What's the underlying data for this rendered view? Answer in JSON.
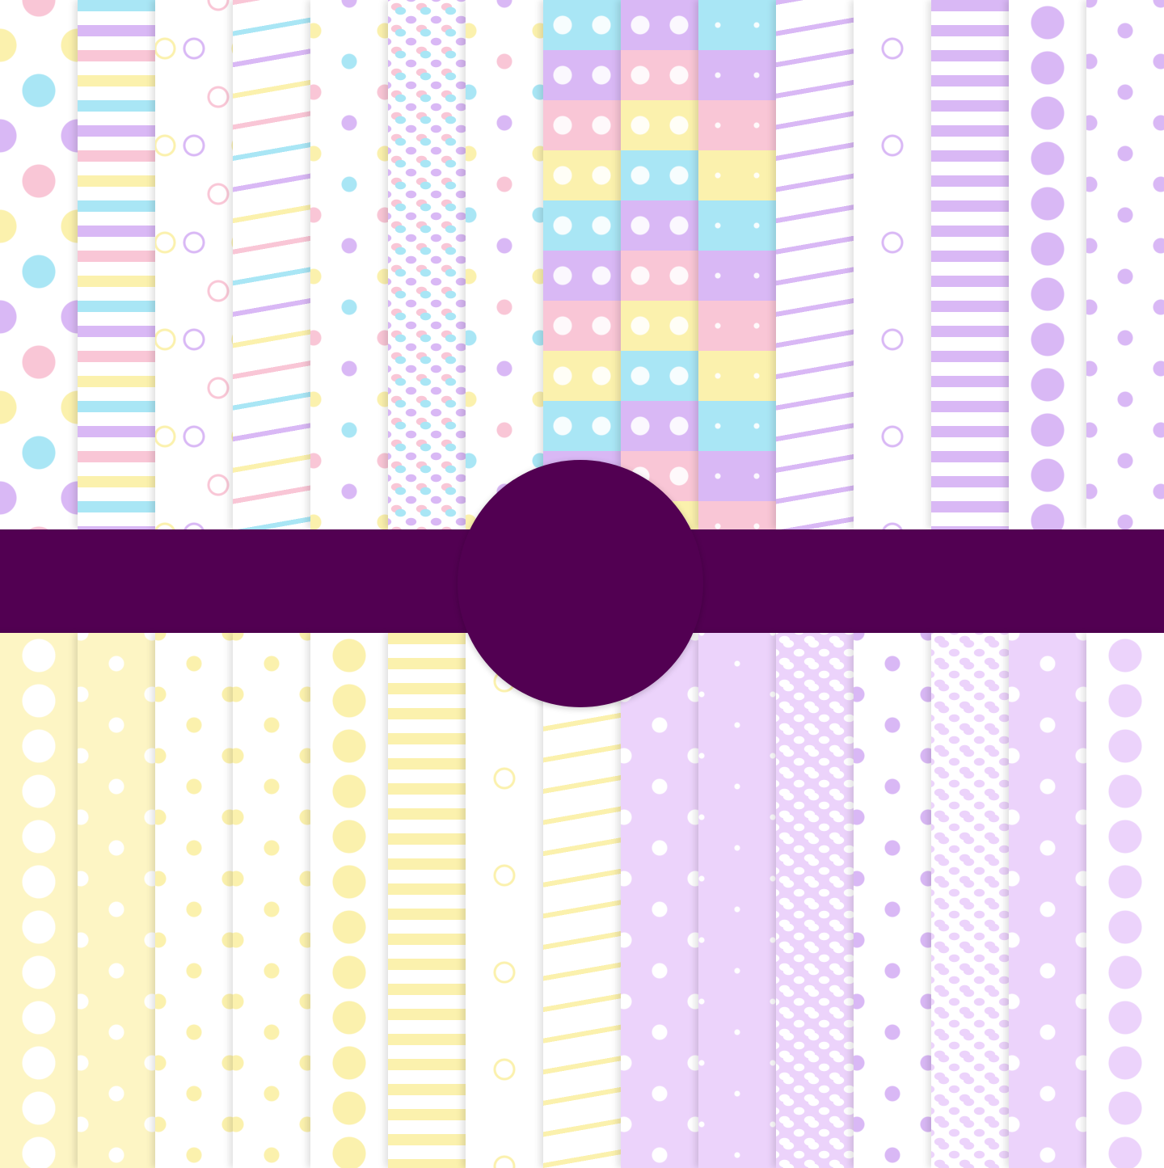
{
  "banner": {
    "color": "#520052"
  },
  "seal": {
    "color": "#520052"
  },
  "palette": {
    "blue": "#a9e6f5",
    "pink": "#f9c6d6",
    "purple": "#d9b8f5",
    "yellow": "#fbf1ad",
    "white": "#ffffff",
    "light_purple": "#ecd3fb",
    "light_yellow": "#fdf5c4"
  },
  "top_papers": [
    {
      "pattern": "dots",
      "bg": "#ffffff",
      "colors": [
        "#a9e6f5",
        "#d9b8f5",
        "#f9c6d6",
        "#fbf1ad"
      ]
    },
    {
      "pattern": "stripes",
      "bg": "#ffffff",
      "colors": [
        "#a9e6f5",
        "#d9b8f5",
        "#f9c6d6",
        "#fbf1ad"
      ]
    },
    {
      "pattern": "scribbles",
      "bg": "#ffffff",
      "colors": [
        "#d9b8f5",
        "#f9c6d6",
        "#fbf1ad"
      ]
    },
    {
      "pattern": "waves",
      "bg": "#ffffff",
      "colors": [
        "#f9c6d6",
        "#a9e6f5",
        "#d9b8f5",
        "#fbf1ad"
      ]
    },
    {
      "pattern": "hearts",
      "bg": "#ffffff",
      "colors": [
        "#a9e6f5",
        "#f9c6d6",
        "#d9b8f5",
        "#fbf1ad"
      ]
    },
    {
      "pattern": "confetti",
      "bg": "#ffffff",
      "colors": [
        "#a9e6f5",
        "#d9b8f5",
        "#f9c6d6",
        "#fbf1ad"
      ]
    },
    {
      "pattern": "hearts",
      "bg": "#ffffff",
      "colors": [
        "#f9c6d6",
        "#a9e6f5",
        "#d9b8f5",
        "#fbf1ad"
      ]
    },
    {
      "pattern": "wide-stripes-hearts",
      "bg": "#ffffff",
      "colors": [
        "#a9e6f5",
        "#d9b8f5",
        "#f9c6d6",
        "#fbf1ad"
      ]
    },
    {
      "pattern": "wide-stripes-dots",
      "bg": "#ffffff",
      "colors": [
        "#d9b8f5",
        "#f9c6d6",
        "#fbf1ad",
        "#a9e6f5"
      ]
    },
    {
      "pattern": "wide-stripes-sparkles",
      "bg": "#ffffff",
      "colors": [
        "#a9e6f5",
        "#d9b8f5",
        "#f9c6d6",
        "#fbf1ad"
      ]
    },
    {
      "pattern": "waves",
      "bg": "#ffffff",
      "colors": [
        "#d9b8f5"
      ]
    },
    {
      "pattern": "scribbles",
      "bg": "#ffffff",
      "colors": [
        "#d9b8f5"
      ]
    },
    {
      "pattern": "stripes",
      "bg": "#ffffff",
      "colors": [
        "#d9b8f5"
      ]
    },
    {
      "pattern": "dots",
      "bg": "#ffffff",
      "colors": [
        "#d9b8f5"
      ]
    },
    {
      "pattern": "hearts",
      "bg": "#ffffff",
      "colors": [
        "#d9b8f5"
      ]
    }
  ],
  "bottom_papers": [
    {
      "pattern": "dots",
      "bg": "#fdf5c4",
      "colors": [
        "#ffffff"
      ]
    },
    {
      "pattern": "hearts",
      "bg": "#fdf5c4",
      "colors": [
        "#ffffff"
      ]
    },
    {
      "pattern": "hearts",
      "bg": "#ffffff",
      "colors": [
        "#fbf1ad"
      ]
    },
    {
      "pattern": "hearts",
      "bg": "#ffffff",
      "colors": [
        "#fbf1ad"
      ]
    },
    {
      "pattern": "dots",
      "bg": "#ffffff",
      "colors": [
        "#fbf1ad"
      ]
    },
    {
      "pattern": "stripes",
      "bg": "#ffffff",
      "colors": [
        "#fbf1ad"
      ]
    },
    {
      "pattern": "scribbles",
      "bg": "#ffffff",
      "colors": [
        "#fbf1ad"
      ]
    },
    {
      "pattern": "waves",
      "bg": "#ffffff",
      "colors": [
        "#fbf1ad"
      ]
    },
    {
      "pattern": "hearts",
      "bg": "#ecd3fb",
      "colors": [
        "#ffffff"
      ]
    },
    {
      "pattern": "sparkles",
      "bg": "#ecd3fb",
      "colors": [
        "#ffffff"
      ]
    },
    {
      "pattern": "confetti",
      "bg": "#ecd3fb",
      "colors": [
        "#ffffff"
      ]
    },
    {
      "pattern": "hearts",
      "bg": "#ffffff",
      "colors": [
        "#d9b8f5"
      ]
    },
    {
      "pattern": "confetti",
      "bg": "#ffffff",
      "colors": [
        "#ecd3fb"
      ]
    },
    {
      "pattern": "hearts",
      "bg": "#ecd3fb",
      "colors": [
        "#ffffff"
      ]
    },
    {
      "pattern": "dots",
      "bg": "#ffffff",
      "colors": [
        "#ecd3fb"
      ]
    }
  ]
}
